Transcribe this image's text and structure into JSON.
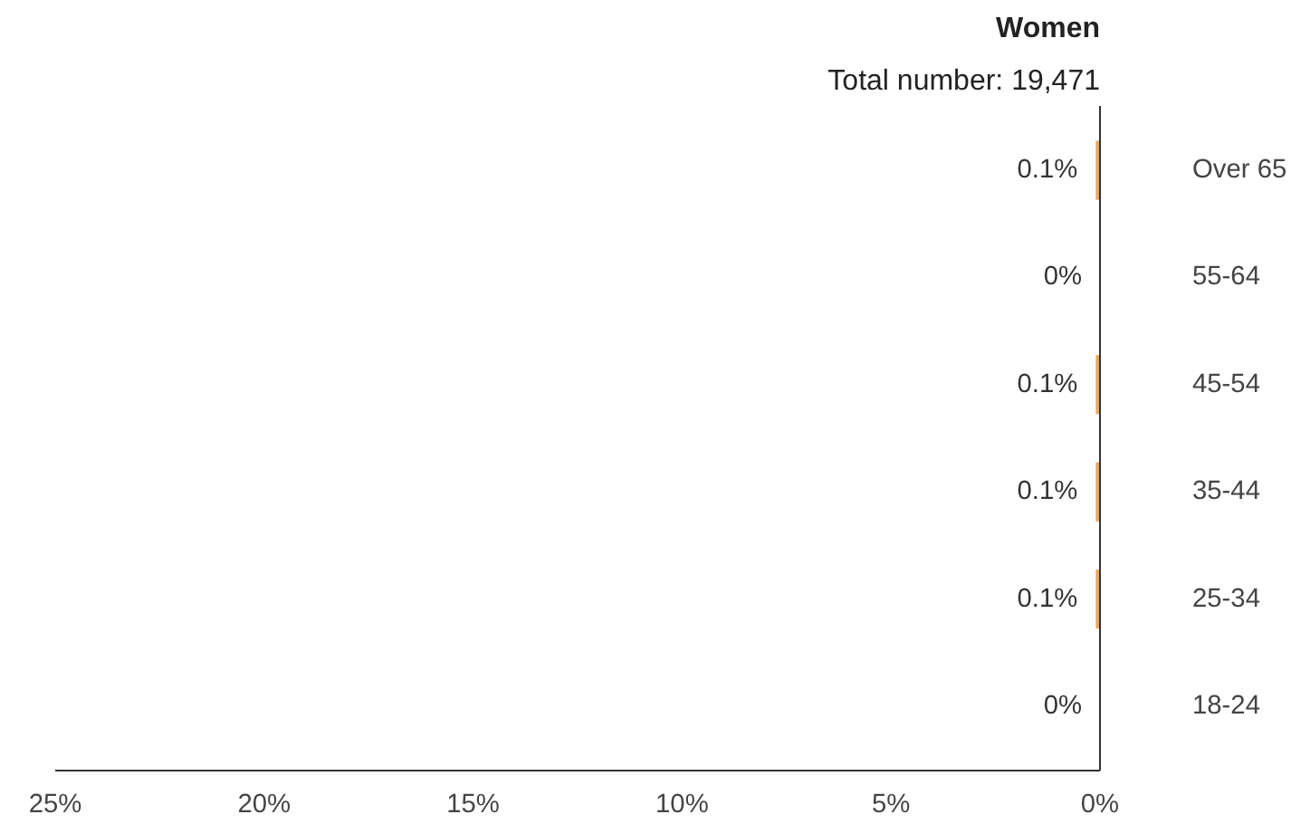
{
  "chart_data": {
    "type": "bar",
    "orientation": "horizontal",
    "title": "Women",
    "subtitle": "Total number: 19,471",
    "categories": [
      "Over 65",
      "55-64",
      "45-54",
      "35-44",
      "25-34",
      "18-24"
    ],
    "values": [
      0.1,
      0,
      0.1,
      0.1,
      0.1,
      0
    ],
    "value_labels": [
      "0.1%",
      "0%",
      "0.1%",
      "0.1%",
      "0.1%",
      "0%"
    ],
    "color": "#e8a860",
    "xlim": [
      25,
      0
    ],
    "xticks": [
      {
        "value": 25,
        "label": "25%"
      },
      {
        "value": 20,
        "label": "20%"
      },
      {
        "value": 15,
        "label": "15%"
      },
      {
        "value": 10,
        "label": "10%"
      },
      {
        "value": 5,
        "label": "5%"
      },
      {
        "value": 0,
        "label": "0%"
      }
    ],
    "grid": false
  }
}
